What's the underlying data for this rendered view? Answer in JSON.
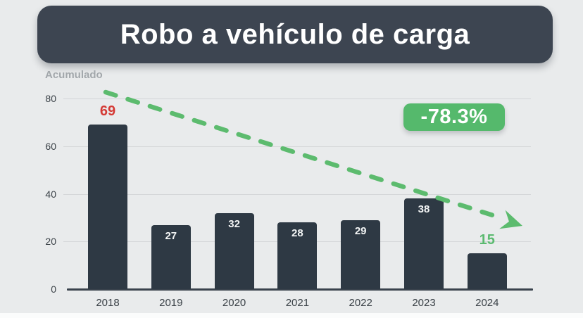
{
  "title": "Robo a vehículo de carga",
  "axis_title": "Acumulado",
  "badge": {
    "label": "-78.3%"
  },
  "chart_data": {
    "type": "bar",
    "title": "Robo a vehículo de carga",
    "ylabel": "Acumulado",
    "xlabel": "",
    "categories": [
      "2018",
      "2019",
      "2020",
      "2021",
      "2022",
      "2023",
      "2024"
    ],
    "values": [
      69,
      27,
      32,
      28,
      29,
      38,
      15
    ],
    "ylim": [
      0,
      80
    ],
    "yticks": [
      0,
      20,
      40,
      60,
      80
    ],
    "grid": true,
    "legend": false,
    "points": [
      {
        "category": "2018",
        "value": 69,
        "label_position": "above",
        "label_color": "#d43a35"
      },
      {
        "category": "2019",
        "value": 27,
        "label_position": "inside",
        "label_color": "#f3f5f5"
      },
      {
        "category": "2020",
        "value": 32,
        "label_position": "inside",
        "label_color": "#f3f5f5"
      },
      {
        "category": "2021",
        "value": 28,
        "label_position": "inside",
        "label_color": "#f3f5f5"
      },
      {
        "category": "2022",
        "value": 29,
        "label_position": "inside",
        "label_color": "#f3f5f5"
      },
      {
        "category": "2023",
        "value": 38,
        "label_position": "inside",
        "label_color": "#f3f5f5"
      },
      {
        "category": "2024",
        "value": 15,
        "label_position": "above",
        "label_color": "#5bba70"
      }
    ],
    "annotations": [
      {
        "type": "badge",
        "text": "-78.3%"
      },
      {
        "type": "trendline",
        "style": "dashed-arrow",
        "direction": "down-right"
      }
    ]
  },
  "colors": {
    "background": "#e9ebec",
    "banner": "#3d4551",
    "bar": "#2e3944",
    "grid": "#d4d6d8",
    "axis_line": "#39424c",
    "axis_text": "#3a4147",
    "axis_title_text": "#a2a7ab",
    "badge_green": "#55b96c",
    "trend_green": "#5cbb6e",
    "highlight_red": "#d43a35",
    "highlight_green": "#5bba70",
    "label_white": "#f3f5f5"
  }
}
